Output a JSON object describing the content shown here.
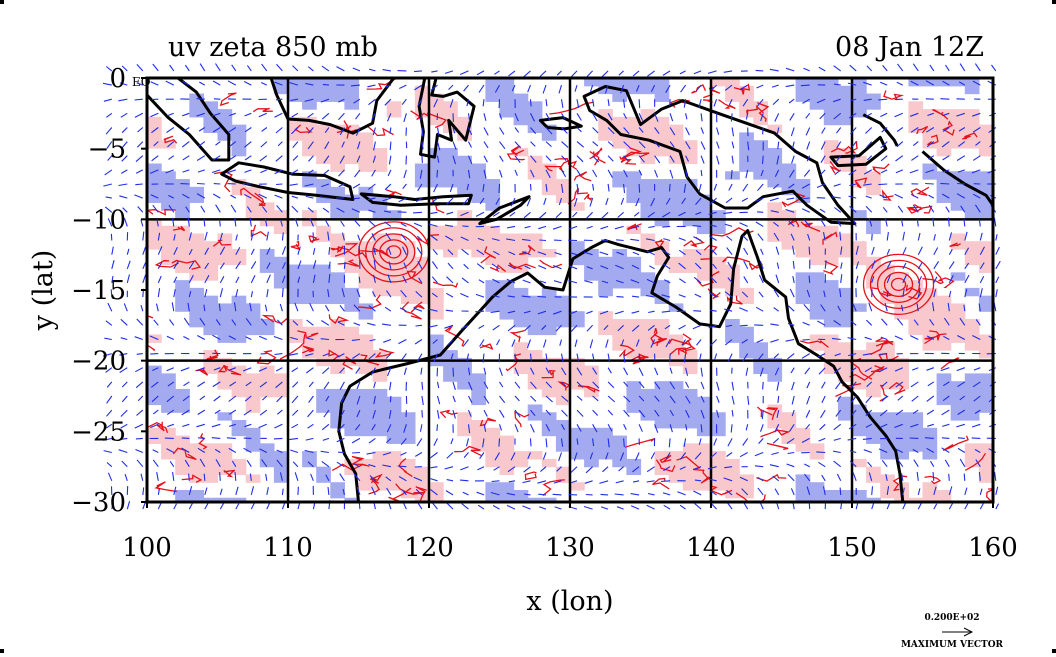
{
  "chart_data": {
    "type": "heatmap",
    "title": "uv zeta 850 mb",
    "date_label": "08 Jan 12Z",
    "xlabel": "x (lon)",
    "ylabel": "y (lat)",
    "xlim": [
      100,
      160
    ],
    "ylim": [
      -30,
      0
    ],
    "x_ticks": [
      100,
      110,
      120,
      130,
      140,
      150,
      160
    ],
    "y_ticks": [
      0,
      -5,
      -10,
      -15,
      -20,
      -25,
      -30
    ],
    "y_tick_labels": [
      "0",
      "−5",
      "−10",
      "−15",
      "−20",
      "−25",
      "−30"
    ],
    "y_top_suffix": "EQ",
    "grid": true,
    "grid_lon": [
      110,
      120,
      130,
      140,
      150
    ],
    "grid_lat": [
      -10,
      -20
    ],
    "colors": {
      "positive_fill": "#f8c8cc",
      "positive_contour": "#e8101a",
      "negative_fill": "#a4aaf0",
      "vectors": "#1e2ee8",
      "coastline": "#000000",
      "grid": "#000000"
    },
    "vector_key": {
      "value_label": "0.200E+02",
      "caption": "MAXIMUM VECTOR"
    },
    "features": [
      {
        "name": "cyclone",
        "lon": 117.5,
        "lat": -12.3
      },
      {
        "name": "cyclone",
        "lon": 153.3,
        "lat": -14.6
      }
    ],
    "coastlines": [
      {
        "name": "australia",
        "closed": true,
        "points": [
          [
            129.5,
            -15.0
          ],
          [
            130.2,
            -12.8
          ],
          [
            131.5,
            -12.0
          ],
          [
            132.5,
            -11.5
          ],
          [
            133.5,
            -11.8
          ],
          [
            134.3,
            -12.0
          ],
          [
            135.5,
            -12.3
          ],
          [
            136.5,
            -12.0
          ],
          [
            137.0,
            -12.7
          ],
          [
            136.2,
            -14.0
          ],
          [
            135.8,
            -15.2
          ],
          [
            137.5,
            -16.2
          ],
          [
            139.2,
            -17.4
          ],
          [
            140.6,
            -17.6
          ],
          [
            141.4,
            -16.0
          ],
          [
            141.6,
            -13.5
          ],
          [
            142.2,
            -11.2
          ],
          [
            142.6,
            -10.8
          ],
          [
            143.3,
            -12.7
          ],
          [
            143.8,
            -14.3
          ],
          [
            145.3,
            -15.5
          ],
          [
            145.5,
            -17.0
          ],
          [
            146.2,
            -18.8
          ],
          [
            147.5,
            -19.6
          ],
          [
            148.7,
            -20.4
          ],
          [
            149.3,
            -21.5
          ],
          [
            150.4,
            -22.6
          ],
          [
            151.3,
            -24.0
          ],
          [
            152.4,
            -25.3
          ],
          [
            153.1,
            -26.4
          ],
          [
            153.4,
            -28.0
          ],
          [
            153.6,
            -30.0
          ],
          [
            115.0,
            -30.0
          ],
          [
            114.8,
            -28.0
          ],
          [
            114.0,
            -26.6
          ],
          [
            113.6,
            -25.0
          ],
          [
            113.8,
            -23.0
          ],
          [
            114.4,
            -21.8
          ],
          [
            116.0,
            -20.8
          ],
          [
            118.5,
            -20.2
          ],
          [
            120.8,
            -19.6
          ],
          [
            122.4,
            -17.8
          ],
          [
            123.5,
            -16.6
          ],
          [
            124.5,
            -15.5
          ],
          [
            125.8,
            -14.4
          ],
          [
            127.0,
            -13.8
          ],
          [
            128.2,
            -14.8
          ]
        ]
      },
      {
        "name": "java",
        "closed": true,
        "points": [
          [
            105.3,
            -6.8
          ],
          [
            106.5,
            -6.0
          ],
          [
            108.3,
            -6.3
          ],
          [
            110.3,
            -6.8
          ],
          [
            112.6,
            -6.9
          ],
          [
            114.4,
            -7.7
          ],
          [
            114.6,
            -8.6
          ],
          [
            112.0,
            -8.3
          ],
          [
            110.0,
            -8.1
          ],
          [
            108.0,
            -7.7
          ],
          [
            106.3,
            -7.3
          ]
        ]
      },
      {
        "name": "sumatra",
        "closed": false,
        "points": [
          [
            100.0,
            -1.2
          ],
          [
            101.5,
            -2.8
          ],
          [
            103.0,
            -4.0
          ],
          [
            104.6,
            -5.8
          ],
          [
            105.8,
            -5.8
          ],
          [
            105.8,
            -4.0
          ],
          [
            104.5,
            -2.5
          ],
          [
            103.5,
            -1.0
          ],
          [
            102.2,
            0.0
          ]
        ]
      },
      {
        "name": "borneo",
        "closed": false,
        "points": [
          [
            108.8,
            0.0
          ],
          [
            109.2,
            -1.2
          ],
          [
            110.0,
            -2.9
          ],
          [
            111.5,
            -3.0
          ],
          [
            113.0,
            -3.3
          ],
          [
            114.6,
            -3.9
          ],
          [
            116.0,
            -3.2
          ],
          [
            116.3,
            -1.6
          ],
          [
            117.5,
            0.0
          ]
        ]
      },
      {
        "name": "sulawesi",
        "closed": false,
        "points": [
          [
            119.7,
            0.0
          ],
          [
            119.3,
            -2.0
          ],
          [
            119.6,
            -3.8
          ],
          [
            119.4,
            -5.4
          ],
          [
            120.4,
            -5.6
          ],
          [
            120.6,
            -4.0
          ],
          [
            121.6,
            -4.4
          ],
          [
            121.4,
            -3.0
          ],
          [
            122.6,
            -4.4
          ],
          [
            123.2,
            -2.0
          ],
          [
            122.0,
            -1.0
          ],
          [
            121.0,
            -1.3
          ],
          [
            120.2,
            -1.2
          ],
          [
            120.5,
            0.0
          ]
        ]
      },
      {
        "name": "lesser-sunda",
        "closed": true,
        "points": [
          [
            115.2,
            -8.2
          ],
          [
            117.5,
            -8.4
          ],
          [
            119.0,
            -8.6
          ],
          [
            121.0,
            -8.4
          ],
          [
            123.0,
            -8.3
          ],
          [
            122.8,
            -8.9
          ],
          [
            120.5,
            -8.9
          ],
          [
            118.0,
            -9.0
          ],
          [
            116.0,
            -8.8
          ]
        ]
      },
      {
        "name": "timor",
        "closed": true,
        "points": [
          [
            123.6,
            -10.3
          ],
          [
            125.0,
            -9.2
          ],
          [
            127.1,
            -8.4
          ],
          [
            126.5,
            -9.0
          ],
          [
            124.8,
            -10.0
          ]
        ]
      },
      {
        "name": "new-guinea",
        "closed": true,
        "points": [
          [
            131.0,
            -1.3
          ],
          [
            132.5,
            -0.6
          ],
          [
            134.0,
            -0.9
          ],
          [
            135.0,
            -3.3
          ],
          [
            136.5,
            -2.2
          ],
          [
            138.0,
            -1.6
          ],
          [
            140.5,
            -2.5
          ],
          [
            142.5,
            -3.2
          ],
          [
            144.5,
            -3.9
          ],
          [
            146.0,
            -5.2
          ],
          [
            147.5,
            -6.0
          ],
          [
            147.9,
            -7.4
          ],
          [
            149.0,
            -9.0
          ],
          [
            150.2,
            -10.3
          ],
          [
            148.5,
            -10.2
          ],
          [
            146.8,
            -9.0
          ],
          [
            145.8,
            -8.0
          ],
          [
            143.7,
            -8.4
          ],
          [
            142.6,
            -9.2
          ],
          [
            141.0,
            -9.2
          ],
          [
            139.2,
            -8.2
          ],
          [
            138.3,
            -7.0
          ],
          [
            137.8,
            -5.2
          ],
          [
            135.6,
            -4.4
          ],
          [
            133.6,
            -4.0
          ],
          [
            132.6,
            -3.0
          ],
          [
            131.4,
            -2.3
          ]
        ]
      },
      {
        "name": "seram",
        "closed": true,
        "points": [
          [
            127.9,
            -3.0
          ],
          [
            129.5,
            -2.8
          ],
          [
            130.8,
            -3.4
          ],
          [
            129.6,
            -3.6
          ],
          [
            128.4,
            -3.5
          ]
        ]
      },
      {
        "name": "new-britain",
        "closed": true,
        "points": [
          [
            148.5,
            -5.6
          ],
          [
            150.5,
            -5.5
          ],
          [
            152.0,
            -4.2
          ],
          [
            152.4,
            -5.0
          ],
          [
            151.0,
            -6.1
          ],
          [
            149.0,
            -6.2
          ]
        ]
      },
      {
        "name": "new-ireland",
        "closed": false,
        "points": [
          [
            150.8,
            -2.6
          ],
          [
            152.0,
            -3.2
          ],
          [
            153.0,
            -4.4
          ],
          [
            153.2,
            -4.8
          ]
        ]
      },
      {
        "name": "solomons",
        "closed": false,
        "points": [
          [
            155.0,
            -5.2
          ],
          [
            156.5,
            -6.5
          ],
          [
            158.0,
            -7.5
          ],
          [
            159.5,
            -8.3
          ],
          [
            160.0,
            -9.0
          ]
        ]
      }
    ]
  }
}
